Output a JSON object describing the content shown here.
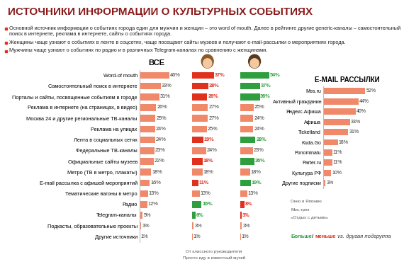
{
  "title": "ИСТОЧНИКИ ИНФОРМАЦИИ О КУЛЬТУРНЫХ СОБЫТИЯХ",
  "bullets": [
    "Основной источник информации о событиях города един для мужчин и женщин – это word of mouth. Далее в рейтинге другие generic-каналы – самостоятельный поиск в интернете, реклама в интернете, сайты о событиях города.",
    "Женщины чаще узнают о событиях в ленте в соцсетях, чаще посещают сайты музеев и получают e-mail-рассылки о мероприятиях города.",
    "Мужчины чаще узнают о событиях по радио и в различных Telegram-каналах по сравнению с женщинами."
  ],
  "chart_data": [
    {
      "type": "bar",
      "orientation": "horizontal",
      "title": "ВСЕ",
      "data_labels": true,
      "tick_labels": "y",
      "categories": [
        "Word-of mouth",
        "Самостоятельный поиск в интернете",
        "Порталы и сайты, посвященные событиям в городе",
        "Реклама в интернете (на страницах, в видео)",
        "Москва 24 и другие региональные ТВ-каналы",
        "Реклама на улицах",
        "Лента в социальных сетях",
        "Федеральные ТВ-каналы",
        "Официальные сайты музеев",
        "Метро (ТВ в метро, плакаты)",
        "E-mail рассылка с афишей мероприятий",
        "Тематические вагоны в метро",
        "Радио",
        "Telegram-каналы",
        "Подкасты, образовательные проекты",
        "Другие источники"
      ],
      "values": [
        46,
        33,
        31,
        26,
        25,
        24,
        24,
        23,
        22,
        18,
        16,
        13,
        12,
        5,
        3,
        1
      ],
      "value_labels": [
        "46%",
        "33%",
        "31%",
        "26%",
        "25%",
        "24%",
        "24%",
        "23%",
        "22%",
        "18%",
        "16%",
        "13%",
        "12%",
        "5%",
        "3%",
        "1%"
      ],
      "color": "#f0896a",
      "colors": [
        "#f0896a",
        "#f0896a",
        "#f0896a",
        "#f0896a",
        "#f0896a",
        "#f0896a",
        "#f0896a",
        "#f0896a",
        "#f0896a",
        "#f0896a",
        "#f0896a",
        "#f0896a",
        "#f0896a",
        "#f0896a",
        "#f0896a",
        "#f0896a"
      ],
      "xlim": [
        0,
        75
      ]
    },
    {
      "type": "bar",
      "orientation": "horizontal",
      "data_labels": true,
      "tick_labels": false,
      "categories": [
        "Word-of mouth",
        "Самостоятельный поиск в интернете",
        "Порталы и сайты, посвященные событиям в городе",
        "Реклама в интернете (на страницах, в видео)",
        "Москва 24 и другие региональные ТВ-каналы",
        "Реклама на улицах",
        "Лента в социальных сетях",
        "Федеральные ТВ-каналы",
        "Официальные сайты музеев",
        "Метро (ТВ в метро, плакаты)",
        "E-mail рассылка с афишей мероприятий",
        "Тематические вагоны в метро",
        "Радио",
        "Telegram-каналы",
        "Подкасты, образовательные проекты",
        "Другие источники"
      ],
      "values": [
        37,
        28,
        26,
        27,
        27,
        25,
        19,
        24,
        18,
        18,
        11,
        13,
        16,
        6,
        3,
        1
      ],
      "value_labels": [
        "37%",
        "28%",
        "26%",
        "27%",
        "27%",
        "25%",
        "19%",
        "24%",
        "18%",
        "18%",
        "11%",
        "13%",
        "16%",
        "6%",
        "3%",
        "1%"
      ],
      "color": "#f0896a",
      "colors": [
        "#e0301e",
        "#e0301e",
        "#e0301e",
        "#f0896a",
        "#f0896a",
        "#f0896a",
        "#e0301e",
        "#f0896a",
        "#e0301e",
        "#f0896a",
        "#e0301e",
        "#f0896a",
        "#2e9e3e",
        "#2e9e3e",
        "#f0896a",
        "#f0896a"
      ],
      "xlim": [
        0,
        75
      ]
    },
    {
      "type": "bar",
      "orientation": "horizontal",
      "data_labels": true,
      "tick_labels": false,
      "categories": [
        "Word-of mouth",
        "Самостоятельный поиск в интернете",
        "Порталы и сайты, посвященные событиям в городе",
        "Реклама в интернете (на страницах, в видео)",
        "Москва 24 и другие региональные ТВ-каналы",
        "Реклама на улицах",
        "Лента в социальных сетях",
        "Федеральные ТВ-каналы",
        "Официальные сайты музеев",
        "Метро (ТВ в метро, плакаты)",
        "E-mail рассылка с афишей мероприятий",
        "Тематические вагоны в метро",
        "Радио",
        "Telegram-каналы",
        "Подкасты, образовательные проекты",
        "Другие источники"
      ],
      "values": [
        54,
        37,
        36,
        25,
        24,
        24,
        28,
        23,
        26,
        18,
        19,
        13,
        8,
        3,
        3,
        1
      ],
      "value_labels": [
        "54%",
        "37%",
        "36%",
        "25%",
        "24%",
        "24%",
        "28%",
        "23%",
        "26%",
        "18%",
        "19%",
        "13%",
        "8%",
        "3%",
        "3%",
        "1%"
      ],
      "color": "#f0896a",
      "colors": [
        "#2e9e3e",
        "#2e9e3e",
        "#2e9e3e",
        "#f0896a",
        "#f0896a",
        "#f0896a",
        "#2e9e3e",
        "#f0896a",
        "#2e9e3e",
        "#f0896a",
        "#2e9e3e",
        "#f0896a",
        "#e0301e",
        "#e0301e",
        "#f0896a",
        "#f0896a"
      ],
      "xlim": [
        0,
        75
      ]
    },
    {
      "type": "bar",
      "orientation": "horizontal",
      "title": "E-MAIL РАССЫЛКИ",
      "data_labels": true,
      "tick_labels": "y",
      "categories": [
        "Mos.ru",
        "Активный гражданин",
        "Яндекс.Афиша",
        "Афиша",
        "Ticketland",
        "Kuda.Go",
        "Ponominalu",
        "Parter.ru",
        "Культура РФ",
        "Другие подписки"
      ],
      "values": [
        52,
        44,
        40,
        33,
        31,
        18,
        11,
        11,
        10,
        3
      ],
      "value_labels": [
        "52%",
        "44%",
        "40%",
        "33%",
        "31%",
        "18%",
        "11%",
        "11%",
        "10%",
        "3%"
      ],
      "color": "#f0896a",
      "xlim": [
        0,
        60
      ]
    }
  ],
  "notes_men": [
    "От классного руководителя",
    "Просто иду в известный музей"
  ],
  "notes_email": [
    "Окно в Японию",
    "Мос.трек",
    "«Отдых с детьми»"
  ],
  "legend_note": {
    "more": {
      "text": "Больше",
      "color": "#2e9e3e"
    },
    "separator": "/ ",
    "less": {
      "text": "меньше",
      "color": "#e0301e"
    },
    "rest": " vs. другая подгруппа"
  }
}
